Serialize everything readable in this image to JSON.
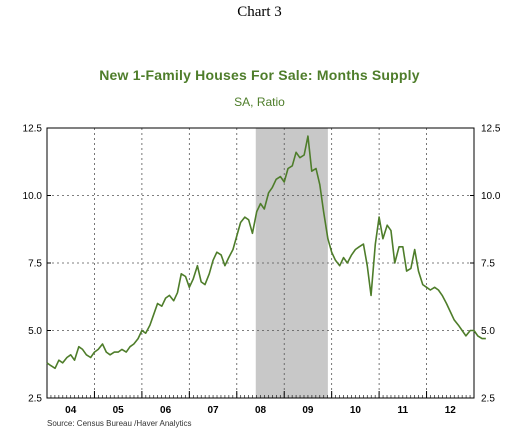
{
  "header": {
    "chart_number": "Chart 3"
  },
  "chart_data": {
    "type": "line",
    "title": "New 1-Family Houses For Sale: Months Supply",
    "subtitle": "SA, Ratio",
    "source": "Source:  Census Bureau /Haver Analytics",
    "xlabel": "",
    "ylabel": "",
    "ylim": [
      2.5,
      12.5
    ],
    "yticks": [
      2.5,
      5.0,
      7.5,
      10.0,
      12.5
    ],
    "ytick_labels": [
      "2.5",
      "5.0",
      "7.5",
      "10.0",
      "12.5"
    ],
    "xlim": [
      2003.5,
      2012.5
    ],
    "xtick_labels": [
      "04",
      "05",
      "06",
      "07",
      "08",
      "09",
      "10",
      "11",
      "12"
    ],
    "xtick_label_centers": [
      2004,
      2005,
      2006,
      2007,
      2008,
      2009,
      2010,
      2011,
      2012
    ],
    "x_year_boundaries": [
      2004.5,
      2005.5,
      2006.5,
      2007.5,
      2008.5,
      2009.5,
      2010.5,
      2011.5
    ],
    "grid": true,
    "recession_shading": {
      "start": 2007.9,
      "end": 2009.42,
      "color": "#c8c8c8"
    },
    "line_color": "#4e7d2a",
    "series": [
      {
        "x": [
          2003.5,
          2003.58,
          2003.67,
          2003.75,
          2003.83,
          2003.92,
          2004.0,
          2004.08,
          2004.17,
          2004.25,
          2004.33,
          2004.42,
          2004.5,
          2004.58,
          2004.67,
          2004.75,
          2004.83,
          2004.92,
          2005.0,
          2005.08,
          2005.17,
          2005.25,
          2005.33,
          2005.42,
          2005.5,
          2005.58,
          2005.67,
          2005.75,
          2005.83,
          2005.92,
          2006.0,
          2006.08,
          2006.17,
          2006.25,
          2006.33,
          2006.42,
          2006.5,
          2006.58,
          2006.67,
          2006.75,
          2006.83,
          2006.92,
          2007.0,
          2007.08,
          2007.17,
          2007.25,
          2007.33,
          2007.42,
          2007.5,
          2007.58,
          2007.67,
          2007.75,
          2007.83,
          2007.92,
          2008.0,
          2008.08,
          2008.17,
          2008.25,
          2008.33,
          2008.42,
          2008.5,
          2008.58,
          2008.67,
          2008.75,
          2008.83,
          2008.92,
          2009.0,
          2009.08,
          2009.17,
          2009.25,
          2009.33,
          2009.42,
          2009.5,
          2009.58,
          2009.67,
          2009.75,
          2009.83,
          2009.92,
          2010.0,
          2010.08,
          2010.17,
          2010.25,
          2010.33,
          2010.42,
          2010.5,
          2010.58,
          2010.67,
          2010.75,
          2010.83,
          2010.92,
          2011.0,
          2011.08,
          2011.17,
          2011.25,
          2011.33,
          2011.42,
          2011.5,
          2011.58,
          2011.67,
          2011.75,
          2011.83,
          2011.92,
          2012.0,
          2012.08,
          2012.17,
          2012.25,
          2012.33,
          2012.42,
          2012.5,
          2012.58,
          2012.67,
          2012.75
        ],
        "values": [
          3.8,
          3.7,
          3.6,
          3.9,
          3.8,
          4.0,
          4.1,
          3.9,
          4.4,
          4.3,
          4.1,
          4.0,
          4.2,
          4.3,
          4.5,
          4.2,
          4.1,
          4.2,
          4.2,
          4.3,
          4.2,
          4.4,
          4.5,
          4.7,
          5.0,
          4.9,
          5.2,
          5.6,
          6.0,
          5.9,
          6.2,
          6.3,
          6.1,
          6.4,
          7.1,
          7.0,
          6.6,
          6.9,
          7.4,
          6.8,
          6.7,
          7.1,
          7.6,
          7.9,
          7.8,
          7.4,
          7.7,
          8.0,
          8.5,
          9.0,
          9.2,
          9.1,
          8.6,
          9.4,
          9.7,
          9.5,
          10.1,
          10.3,
          10.6,
          10.7,
          10.5,
          11.0,
          11.1,
          11.6,
          11.4,
          11.5,
          12.2,
          10.9,
          11.0,
          10.4,
          9.4,
          8.4,
          7.9,
          7.6,
          7.4,
          7.7,
          7.5,
          7.8,
          8.0,
          8.1,
          8.2,
          7.4,
          6.3,
          8.2,
          9.2,
          8.4,
          8.9,
          8.7,
          7.5,
          8.1,
          8.1,
          7.2,
          7.3,
          8.0,
          7.2,
          6.7,
          6.6,
          6.5,
          6.6,
          6.5,
          6.3,
          6.0,
          5.7,
          5.4,
          5.2,
          5.0,
          4.8,
          5.0,
          5.0,
          4.8,
          4.7,
          4.7
        ]
      }
    ]
  }
}
